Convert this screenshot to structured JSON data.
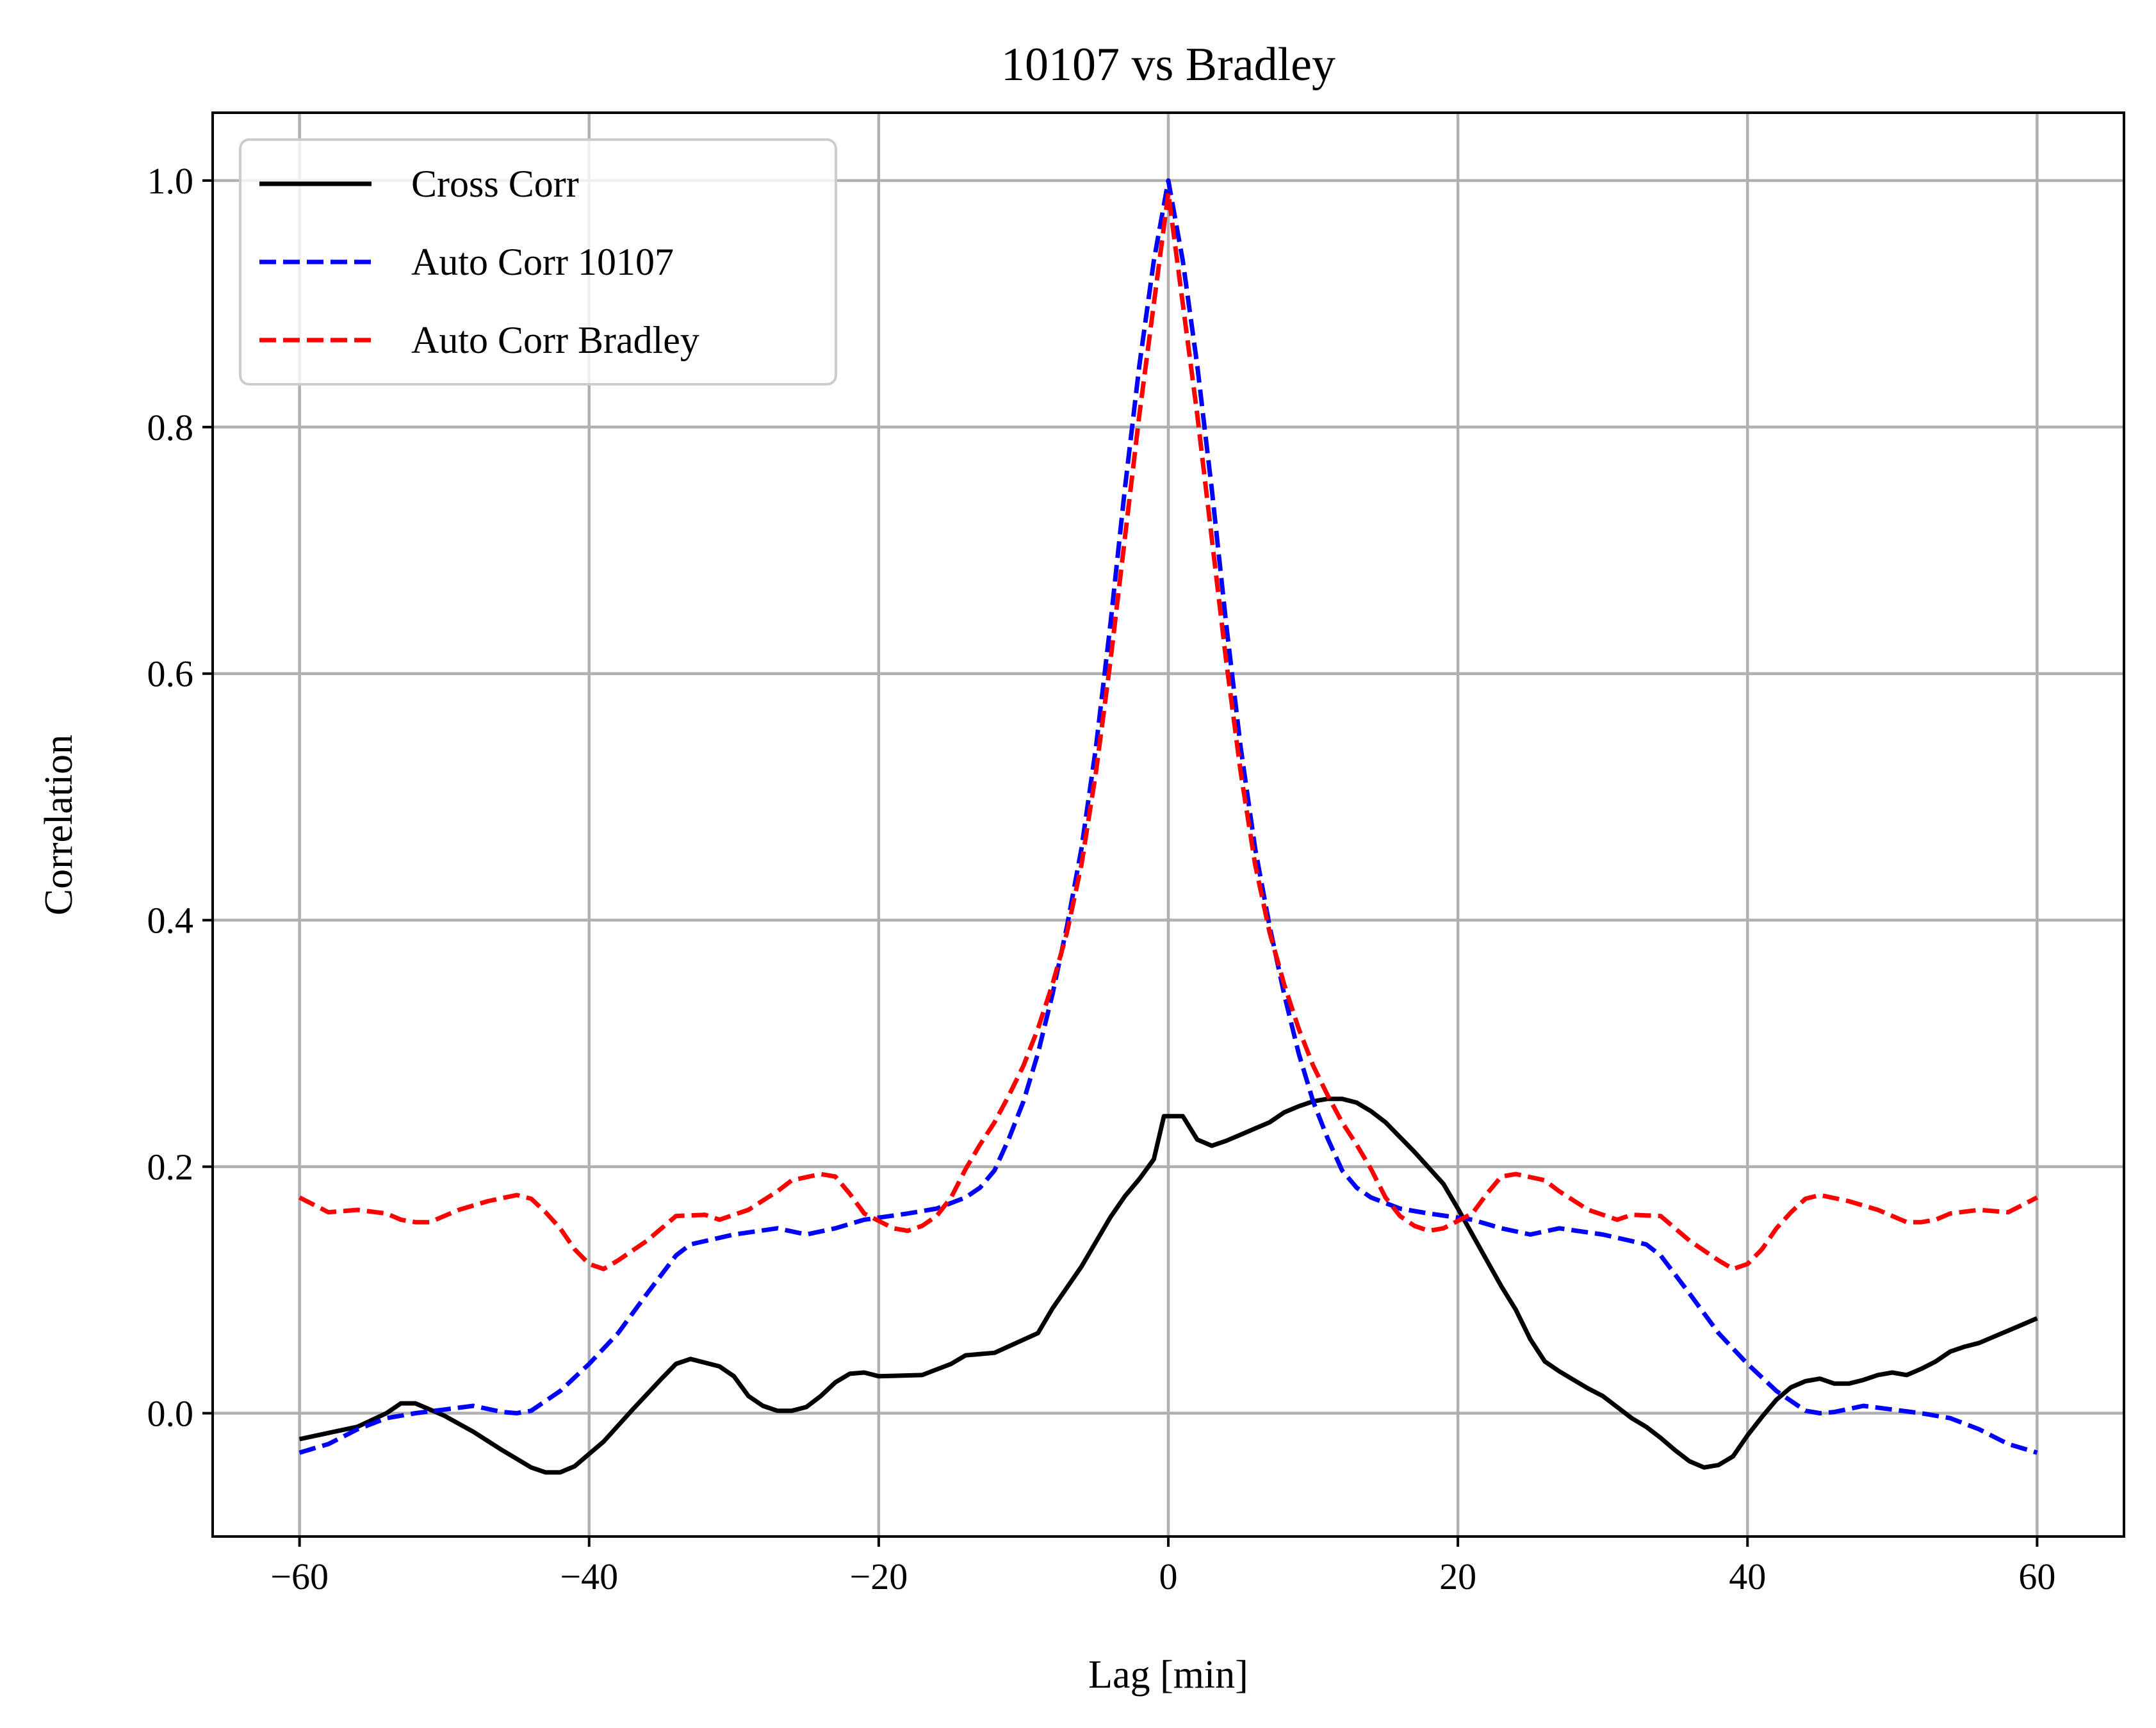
{
  "chart_data": {
    "type": "line",
    "title": "10107 vs Bradley",
    "xlabel": "Lag [min]",
    "ylabel": "Correlation",
    "xlim": [
      -66,
      66
    ],
    "ylim": [
      -0.1,
      1.055
    ],
    "xticks": [
      -60,
      -40,
      -20,
      0,
      20,
      40,
      60
    ],
    "xtick_labels": [
      "−60",
      "−40",
      "−20",
      "0",
      "20",
      "40",
      "60"
    ],
    "yticks": [
      0.0,
      0.2,
      0.4,
      0.6,
      0.8,
      1.0
    ],
    "ytick_labels": [
      "0.0",
      "0.2",
      "0.4",
      "0.6",
      "0.8",
      "1.0"
    ],
    "grid": true,
    "legend_position": "top-left",
    "series": [
      {
        "name": "Cross Corr",
        "color": "#000000",
        "dash": "solid",
        "points": [
          [
            -60,
            -0.021
          ],
          [
            -58,
            -0.016
          ],
          [
            -56,
            -0.011
          ],
          [
            -54,
            0.0
          ],
          [
            -53,
            0.008
          ],
          [
            -52,
            0.008
          ],
          [
            -50,
            -0.002
          ],
          [
            -48,
            -0.015
          ],
          [
            -46,
            -0.03
          ],
          [
            -44,
            -0.044
          ],
          [
            -43,
            -0.048
          ],
          [
            -42,
            -0.048
          ],
          [
            -41,
            -0.043
          ],
          [
            -39,
            -0.023
          ],
          [
            -37,
            0.003
          ],
          [
            -35,
            0.028
          ],
          [
            -34,
            0.04
          ],
          [
            -33,
            0.044
          ],
          [
            -31,
            0.038
          ],
          [
            -30,
            0.03
          ],
          [
            -29,
            0.014
          ],
          [
            -28,
            0.006
          ],
          [
            -27,
            0.002
          ],
          [
            -26,
            0.002
          ],
          [
            -25,
            0.005
          ],
          [
            -24,
            0.014
          ],
          [
            -23,
            0.025
          ],
          [
            -22,
            0.032
          ],
          [
            -21,
            0.033
          ],
          [
            -20,
            0.03
          ],
          [
            -17,
            0.031
          ],
          [
            -15,
            0.04
          ],
          [
            -14,
            0.047
          ],
          [
            -12,
            0.049
          ],
          [
            -9,
            0.065
          ],
          [
            -8,
            0.085
          ],
          [
            -7,
            0.102
          ],
          [
            -6,
            0.119
          ],
          [
            -5,
            0.139
          ],
          [
            -4,
            0.159
          ],
          [
            -3,
            0.176
          ],
          [
            -2,
            0.19
          ],
          [
            -1,
            0.206
          ],
          [
            -0.3,
            0.241
          ],
          [
            1,
            0.241
          ],
          [
            2,
            0.222
          ],
          [
            3,
            0.217
          ],
          [
            4,
            0.221
          ],
          [
            5,
            0.226
          ],
          [
            6,
            0.231
          ],
          [
            7,
            0.236
          ],
          [
            8,
            0.244
          ],
          [
            9,
            0.249
          ],
          [
            10,
            0.253
          ],
          [
            11,
            0.255
          ],
          [
            12,
            0.255
          ],
          [
            13,
            0.252
          ],
          [
            14,
            0.245
          ],
          [
            15,
            0.236
          ],
          [
            16,
            0.224
          ],
          [
            17,
            0.212
          ],
          [
            18,
            0.199
          ],
          [
            19,
            0.186
          ],
          [
            20,
            0.166
          ],
          [
            21,
            0.145
          ],
          [
            22,
            0.124
          ],
          [
            23,
            0.103
          ],
          [
            24,
            0.084
          ],
          [
            25,
            0.06
          ],
          [
            26,
            0.042
          ],
          [
            27,
            0.034
          ],
          [
            28,
            0.027
          ],
          [
            29,
            0.02
          ],
          [
            30,
            0.014
          ],
          [
            31,
            0.005
          ],
          [
            32,
            -0.004
          ],
          [
            33,
            -0.011
          ],
          [
            34,
            -0.02
          ],
          [
            35,
            -0.03
          ],
          [
            36,
            -0.039
          ],
          [
            37,
            -0.044
          ],
          [
            38,
            -0.042
          ],
          [
            39,
            -0.035
          ],
          [
            40,
            -0.018
          ],
          [
            41,
            -0.003
          ],
          [
            42,
            0.011
          ],
          [
            43,
            0.021
          ],
          [
            44,
            0.026
          ],
          [
            45,
            0.028
          ],
          [
            46,
            0.024
          ],
          [
            47,
            0.024
          ],
          [
            48,
            0.027
          ],
          [
            49,
            0.031
          ],
          [
            50,
            0.033
          ],
          [
            51,
            0.031
          ],
          [
            52,
            0.036
          ],
          [
            53,
            0.042
          ],
          [
            54,
            0.05
          ],
          [
            55,
            0.054
          ],
          [
            56,
            0.057
          ],
          [
            57,
            0.062
          ],
          [
            58,
            0.067
          ],
          [
            59,
            0.072
          ],
          [
            60,
            0.077
          ]
        ]
      },
      {
        "name": "Auto Corr 10107",
        "color": "#0000ff",
        "dash": "dashed",
        "points": [
          [
            -60,
            -0.032
          ],
          [
            -58,
            -0.025
          ],
          [
            -56,
            -0.013
          ],
          [
            -54,
            -0.004
          ],
          [
            -52,
            0.0
          ],
          [
            -50,
            0.003
          ],
          [
            -48,
            0.006
          ],
          [
            -46,
            0.001
          ],
          [
            -45,
            0.0
          ],
          [
            -44,
            0.002
          ],
          [
            -42,
            0.018
          ],
          [
            -40,
            0.04
          ],
          [
            -38,
            0.065
          ],
          [
            -36,
            0.097
          ],
          [
            -34,
            0.128
          ],
          [
            -33,
            0.137
          ],
          [
            -30,
            0.145
          ],
          [
            -27,
            0.15
          ],
          [
            -25,
            0.145
          ],
          [
            -23,
            0.15
          ],
          [
            -21,
            0.157
          ],
          [
            -18,
            0.162
          ],
          [
            -16,
            0.166
          ],
          [
            -14,
            0.175
          ],
          [
            -13,
            0.183
          ],
          [
            -12,
            0.197
          ],
          [
            -11,
            0.223
          ],
          [
            -10,
            0.253
          ],
          [
            -9,
            0.292
          ],
          [
            -8,
            0.34
          ],
          [
            -7,
            0.395
          ],
          [
            -6,
            0.458
          ],
          [
            -5,
            0.54
          ],
          [
            -4,
            0.64
          ],
          [
            -3,
            0.75
          ],
          [
            -2,
            0.85
          ],
          [
            -1,
            0.935
          ],
          [
            0,
            1.0
          ],
          [
            1,
            0.935
          ],
          [
            2,
            0.85
          ],
          [
            3,
            0.75
          ],
          [
            4,
            0.64
          ],
          [
            5,
            0.54
          ],
          [
            6,
            0.458
          ],
          [
            7,
            0.395
          ],
          [
            8,
            0.34
          ],
          [
            9,
            0.292
          ],
          [
            10,
            0.253
          ],
          [
            11,
            0.223
          ],
          [
            12,
            0.197
          ],
          [
            13,
            0.183
          ],
          [
            14,
            0.175
          ],
          [
            16,
            0.166
          ],
          [
            18,
            0.162
          ],
          [
            21,
            0.157
          ],
          [
            23,
            0.15
          ],
          [
            25,
            0.145
          ],
          [
            27,
            0.15
          ],
          [
            30,
            0.145
          ],
          [
            33,
            0.137
          ],
          [
            34,
            0.128
          ],
          [
            36,
            0.097
          ],
          [
            38,
            0.065
          ],
          [
            40,
            0.04
          ],
          [
            42,
            0.018
          ],
          [
            44,
            0.002
          ],
          [
            45,
            0.0
          ],
          [
            46,
            0.001
          ],
          [
            48,
            0.006
          ],
          [
            50,
            0.003
          ],
          [
            52,
            0.0
          ],
          [
            54,
            -0.004
          ],
          [
            56,
            -0.013
          ],
          [
            58,
            -0.025
          ],
          [
            60,
            -0.032
          ]
        ]
      },
      {
        "name": "Auto Corr Bradley",
        "color": "#ff0000",
        "dash": "dashed",
        "points": [
          [
            -60,
            0.175
          ],
          [
            -58,
            0.163
          ],
          [
            -56,
            0.165
          ],
          [
            -54,
            0.162
          ],
          [
            -53,
            0.157
          ],
          [
            -52,
            0.155
          ],
          [
            -51,
            0.155
          ],
          [
            -49,
            0.165
          ],
          [
            -47,
            0.172
          ],
          [
            -45,
            0.177
          ],
          [
            -44,
            0.174
          ],
          [
            -43,
            0.163
          ],
          [
            -42,
            0.15
          ],
          [
            -41,
            0.133
          ],
          [
            -40,
            0.121
          ],
          [
            -39,
            0.117
          ],
          [
            -38,
            0.124
          ],
          [
            -36,
            0.14
          ],
          [
            -34,
            0.16
          ],
          [
            -32,
            0.161
          ],
          [
            -31,
            0.157
          ],
          [
            -29,
            0.165
          ],
          [
            -27,
            0.18
          ],
          [
            -26,
            0.189
          ],
          [
            -24,
            0.194
          ],
          [
            -23,
            0.192
          ],
          [
            -22,
            0.178
          ],
          [
            -21,
            0.162
          ],
          [
            -19,
            0.15
          ],
          [
            -18,
            0.148
          ],
          [
            -17,
            0.152
          ],
          [
            -16,
            0.16
          ],
          [
            -15,
            0.175
          ],
          [
            -14,
            0.198
          ],
          [
            -13,
            0.218
          ],
          [
            -12,
            0.236
          ],
          [
            -11,
            0.258
          ],
          [
            -10,
            0.282
          ],
          [
            -9,
            0.312
          ],
          [
            -8,
            0.348
          ],
          [
            -7,
            0.39
          ],
          [
            -6,
            0.445
          ],
          [
            -5,
            0.52
          ],
          [
            -4,
            0.61
          ],
          [
            -3,
            0.71
          ],
          [
            -2,
            0.81
          ],
          [
            -1,
            0.9
          ],
          [
            0,
            0.99
          ],
          [
            1,
            0.9
          ],
          [
            2,
            0.81
          ],
          [
            3,
            0.71
          ],
          [
            4,
            0.61
          ],
          [
            5,
            0.52
          ],
          [
            6,
            0.445
          ],
          [
            7,
            0.39
          ],
          [
            8,
            0.348
          ],
          [
            9,
            0.312
          ],
          [
            10,
            0.282
          ],
          [
            11,
            0.258
          ],
          [
            12,
            0.236
          ],
          [
            13,
            0.218
          ],
          [
            14,
            0.198
          ],
          [
            15,
            0.175
          ],
          [
            16,
            0.16
          ],
          [
            17,
            0.152
          ],
          [
            18,
            0.148
          ],
          [
            19,
            0.15
          ],
          [
            21,
            0.162
          ],
          [
            22,
            0.178
          ],
          [
            23,
            0.192
          ],
          [
            24,
            0.194
          ],
          [
            26,
            0.189
          ],
          [
            27,
            0.18
          ],
          [
            29,
            0.165
          ],
          [
            31,
            0.157
          ],
          [
            32,
            0.161
          ],
          [
            34,
            0.16
          ],
          [
            36,
            0.14
          ],
          [
            38,
            0.124
          ],
          [
            39,
            0.117
          ],
          [
            40,
            0.121
          ],
          [
            41,
            0.133
          ],
          [
            42,
            0.15
          ],
          [
            43,
            0.163
          ],
          [
            44,
            0.174
          ],
          [
            45,
            0.177
          ],
          [
            47,
            0.172
          ],
          [
            49,
            0.165
          ],
          [
            51,
            0.155
          ],
          [
            52,
            0.155
          ],
          [
            53,
            0.157
          ],
          [
            54,
            0.162
          ],
          [
            56,
            0.165
          ],
          [
            58,
            0.163
          ],
          [
            60,
            0.175
          ]
        ]
      }
    ]
  }
}
